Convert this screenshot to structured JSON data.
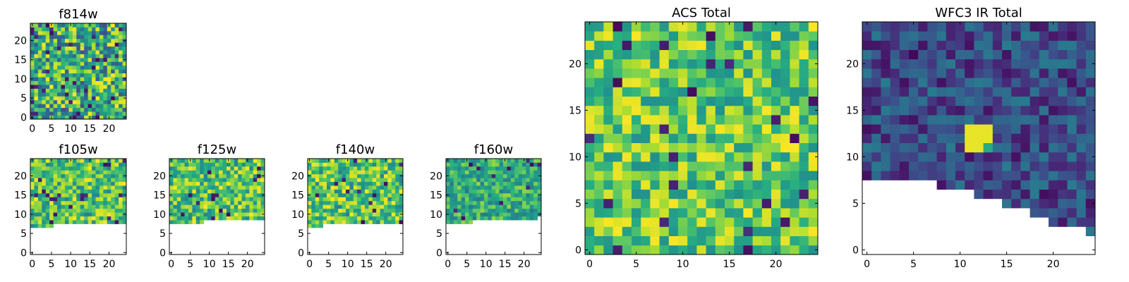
{
  "chart_data": [
    {
      "type": "heatmap",
      "title": "f814w",
      "xticks": [
        "0",
        "5",
        "10",
        "15",
        "20"
      ],
      "yticks": [
        "0",
        "5",
        "10",
        "15",
        "20"
      ],
      "xlim": [
        0,
        24
      ],
      "ylim": [
        0,
        24
      ],
      "grid": 25,
      "mask_rows_below": [
        0,
        0,
        0,
        0,
        0,
        0,
        0,
        0,
        0,
        0,
        0,
        0,
        0,
        0,
        0,
        0,
        0,
        0,
        0,
        0,
        0,
        0,
        0,
        0,
        0
      ],
      "colormap": "viridis",
      "seed": 11,
      "value_range": [
        0.25,
        1.0
      ],
      "dark_fraction": 0.05,
      "hotspot": null
    },
    {
      "type": "heatmap",
      "title": "f105w",
      "xticks": [
        "0",
        "5",
        "10",
        "15",
        "20"
      ],
      "yticks": [
        "0",
        "5",
        "10",
        "15",
        "20"
      ],
      "xlim": [
        0,
        24
      ],
      "ylim": [
        0,
        24
      ],
      "grid": 25,
      "mask_rows_below": [
        7,
        7,
        7,
        7,
        7,
        7,
        8,
        8,
        8,
        8,
        8,
        8,
        8,
        8,
        8,
        8,
        8,
        8,
        8,
        8,
        8,
        8,
        8,
        8,
        8
      ],
      "colormap": "viridis",
      "seed": 23,
      "value_range": [
        0.45,
        1.0
      ],
      "dark_fraction": 0.03,
      "hotspot": null
    },
    {
      "type": "heatmap",
      "title": "f125w",
      "xticks": [
        "0",
        "5",
        "10",
        "15",
        "20"
      ],
      "yticks": [
        "0",
        "5",
        "10",
        "15",
        "20"
      ],
      "xlim": [
        0,
        24
      ],
      "ylim": [
        0,
        24
      ],
      "grid": 25,
      "mask_rows_below": [
        8,
        8,
        8,
        8,
        8,
        8,
        8,
        8,
        8,
        9,
        9,
        9,
        9,
        9,
        9,
        9,
        9,
        9,
        9,
        9,
        9,
        9,
        9,
        9,
        9
      ],
      "colormap": "viridis",
      "seed": 37,
      "value_range": [
        0.45,
        1.0
      ],
      "dark_fraction": 0.03,
      "hotspot": null
    },
    {
      "type": "heatmap",
      "title": "f140w",
      "xticks": [
        "0",
        "5",
        "10",
        "15",
        "20"
      ],
      "yticks": [
        "0",
        "5",
        "10",
        "15",
        "20"
      ],
      "xlim": [
        0,
        24
      ],
      "ylim": [
        0,
        24
      ],
      "grid": 25,
      "mask_rows_below": [
        7,
        7,
        7,
        7,
        8,
        8,
        8,
        8,
        8,
        8,
        8,
        8,
        8,
        8,
        8,
        8,
        8,
        8,
        8,
        8,
        8,
        8,
        8,
        8,
        8
      ],
      "colormap": "viridis",
      "seed": 41,
      "value_range": [
        0.45,
        1.0
      ],
      "dark_fraction": 0.03,
      "hotspot": null
    },
    {
      "type": "heatmap",
      "title": "f160w",
      "xticks": [
        "0",
        "5",
        "10",
        "15",
        "20"
      ],
      "yticks": [
        "0",
        "5",
        "10",
        "15",
        "20"
      ],
      "xlim": [
        0,
        24
      ],
      "ylim": [
        0,
        24
      ],
      "grid": 25,
      "mask_rows_below": [
        8,
        8,
        8,
        8,
        8,
        8,
        8,
        9,
        9,
        9,
        9,
        9,
        9,
        9,
        9,
        9,
        9,
        9,
        9,
        9,
        9,
        9,
        9,
        9,
        10
      ],
      "colormap": "viridis",
      "seed": 53,
      "value_range": [
        0.4,
        0.85
      ],
      "dark_fraction": 0.03,
      "hotspot": null
    },
    {
      "type": "heatmap",
      "title": "ACS Total",
      "xticks": [
        "0",
        "5",
        "10",
        "15",
        "20"
      ],
      "yticks": [
        "0",
        "5",
        "10",
        "15",
        "20"
      ],
      "xlim": [
        0,
        24
      ],
      "ylim": [
        0,
        24
      ],
      "grid": 25,
      "mask_rows_below": [
        0,
        0,
        0,
        0,
        0,
        0,
        0,
        0,
        0,
        0,
        0,
        0,
        0,
        0,
        0,
        0,
        0,
        0,
        0,
        0,
        0,
        0,
        0,
        0,
        0
      ],
      "colormap": "viridis",
      "seed": 67,
      "value_range": [
        0.5,
        1.0
      ],
      "dark_fraction": 0.035,
      "hotspot": null
    },
    {
      "type": "heatmap",
      "title": "WFC3 IR Total",
      "xticks": [
        "0",
        "5",
        "10",
        "15",
        "20"
      ],
      "yticks": [
        "0",
        "5",
        "10",
        "15",
        "20"
      ],
      "xlim": [
        0,
        24
      ],
      "ylim": [
        0,
        24
      ],
      "grid": 25,
      "mask_rows_below": [
        8,
        8,
        8,
        8,
        8,
        8,
        8,
        8,
        7,
        7,
        7,
        7,
        6,
        6,
        6,
        5,
        5,
        5,
        4,
        4,
        3,
        3,
        3,
        3,
        2
      ],
      "colormap": "viridis",
      "seed": 79,
      "value_range": [
        0.04,
        0.42
      ],
      "dark_fraction": 0.02,
      "hotspot": {
        "x": [
          11,
          12,
          13
        ],
        "y": [
          11,
          12,
          13
        ],
        "value": 0.97
      }
    }
  ]
}
